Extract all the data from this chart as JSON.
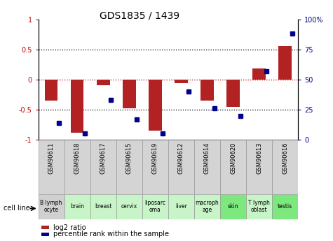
{
  "title": "GDS1835 / 1439",
  "samples": [
    "GSM90611",
    "GSM90618",
    "GSM90617",
    "GSM90615",
    "GSM90619",
    "GSM90612",
    "GSM90614",
    "GSM90620",
    "GSM90613",
    "GSM90616"
  ],
  "cell_lines": [
    "B lymph\nocyte",
    "brain",
    "breast",
    "cervix",
    "liposarc\noma",
    "liver",
    "macroph\nage",
    "skin",
    "T lymph\noblast",
    "testis"
  ],
  "cell_line_colors": [
    "#d0d0d0",
    "#c8f5c8",
    "#c8f5c8",
    "#c8f5c8",
    "#c8f5c8",
    "#c8f5c8",
    "#c8f5c8",
    "#7de87d",
    "#c8f5c8",
    "#7de87d"
  ],
  "log2_ratio": [
    -0.35,
    -0.88,
    -0.1,
    -0.48,
    -0.85,
    -0.06,
    -0.35,
    -0.45,
    0.18,
    0.55
  ],
  "percentile_rank": [
    14,
    5,
    33,
    17,
    5,
    40,
    26,
    20,
    57,
    88
  ],
  "bar_color": "#b22222",
  "dot_color": "#00008b",
  "ylim_left": [
    -1,
    1
  ],
  "ylim_right": [
    0,
    100
  ],
  "yticks_left": [
    -1,
    -0.5,
    0,
    0.5,
    1
  ],
  "ytick_labels_left": [
    "-1",
    "-0.5",
    "0",
    "0.5",
    "1"
  ],
  "yticks_right": [
    0,
    25,
    50,
    75,
    100
  ],
  "ytick_labels_right": [
    "0",
    "25",
    "50",
    "75",
    "100%"
  ]
}
